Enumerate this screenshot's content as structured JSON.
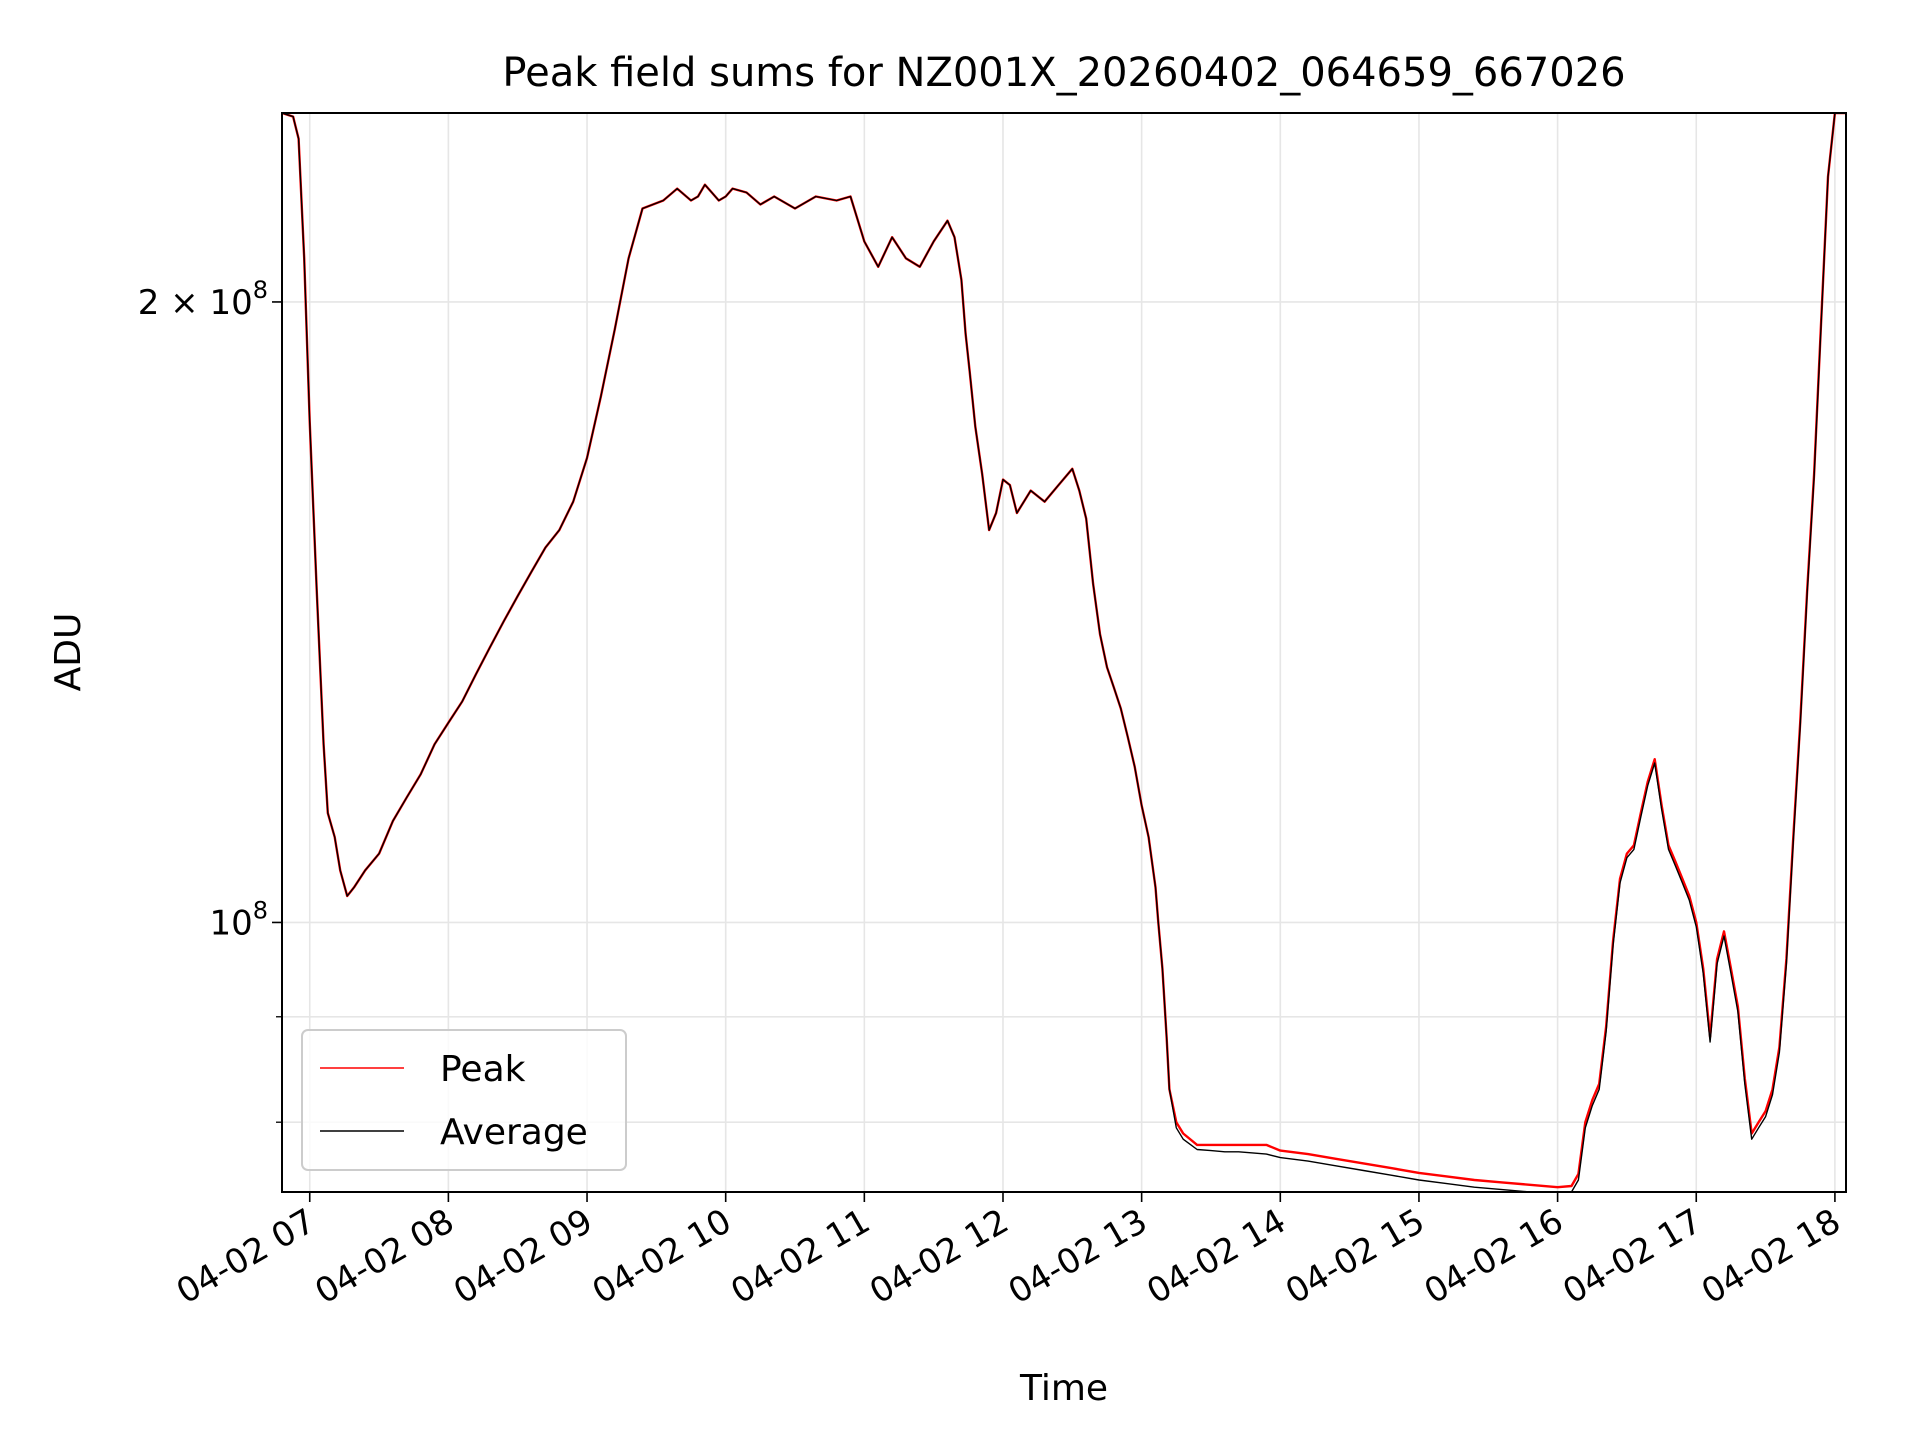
{
  "chart_data": {
    "type": "line",
    "title": "Peak field sums for NZ001X_20260402_064659_667026",
    "xlabel": "Time",
    "ylabel": "ADU",
    "yscale": "log",
    "xlim": [
      6.8,
      18.08
    ],
    "ylim": [
      74000000,
      247000000
    ],
    "x_ticks": [
      {
        "value": 7,
        "label": "04-02 07"
      },
      {
        "value": 8,
        "label": "04-02 08"
      },
      {
        "value": 9,
        "label": "04-02 09"
      },
      {
        "value": 10,
        "label": "04-02 10"
      },
      {
        "value": 11,
        "label": "04-02 11"
      },
      {
        "value": 12,
        "label": "04-02 12"
      },
      {
        "value": 13,
        "label": "04-02 13"
      },
      {
        "value": 14,
        "label": "04-02 14"
      },
      {
        "value": 15,
        "label": "04-02 15"
      },
      {
        "value": 16,
        "label": "04-02 16"
      },
      {
        "value": 17,
        "label": "04-02 17"
      },
      {
        "value": 18,
        "label": "04-02 18"
      }
    ],
    "y_major_ticks": [
      {
        "value": 100000000,
        "base": "10",
        "exp": "8"
      },
      {
        "value": 200000000,
        "base": "2 × 10",
        "exp": "8"
      }
    ],
    "y_minor_ticks": [
      80000000,
      90000000
    ],
    "grid": true,
    "legend": {
      "position": "lower-left",
      "entries": [
        "Peak",
        "Average"
      ]
    },
    "series": [
      {
        "name": "Peak",
        "color": "#ff0000",
        "x": [
          6.8,
          6.88,
          6.92,
          6.96,
          7.0,
          7.05,
          7.1,
          7.13,
          7.18,
          7.22,
          7.27,
          7.32,
          7.4,
          7.5,
          7.6,
          7.7,
          7.8,
          7.9,
          8.0,
          8.1,
          8.2,
          8.3,
          8.4,
          8.5,
          8.6,
          8.7,
          8.8,
          8.9,
          9.0,
          9.1,
          9.2,
          9.3,
          9.4,
          9.55,
          9.65,
          9.75,
          9.8,
          9.85,
          9.9,
          9.95,
          10.0,
          10.05,
          10.15,
          10.25,
          10.35,
          10.5,
          10.65,
          10.8,
          10.9,
          11.0,
          11.1,
          11.2,
          11.3,
          11.4,
          11.5,
          11.6,
          11.65,
          11.7,
          11.73,
          11.76,
          11.8,
          11.85,
          11.9,
          11.95,
          12.0,
          12.05,
          12.1,
          12.2,
          12.3,
          12.4,
          12.5,
          12.55,
          12.6,
          12.65,
          12.7,
          12.75,
          12.8,
          12.85,
          12.9,
          12.95,
          13.0,
          13.05,
          13.1,
          13.12,
          13.15,
          13.18,
          13.2,
          13.25,
          13.3,
          13.4,
          13.5,
          13.6,
          13.7,
          13.8,
          13.9,
          14.0,
          14.2,
          14.4,
          14.6,
          14.8,
          15.0,
          15.2,
          15.4,
          15.6,
          15.8,
          16.0,
          16.1,
          16.15,
          16.2,
          16.25,
          16.3,
          16.35,
          16.4,
          16.45,
          16.5,
          16.55,
          16.6,
          16.65,
          16.7,
          16.75,
          16.8,
          16.85,
          16.9,
          16.95,
          17.0,
          17.05,
          17.1,
          17.15,
          17.2,
          17.25,
          17.3,
          17.35,
          17.4,
          17.45,
          17.5,
          17.55,
          17.6,
          17.65,
          17.7,
          17.75,
          17.8,
          17.85,
          17.9,
          17.95,
          18.0,
          18.08
        ],
        "values": [
          247000000,
          246000000,
          240000000,
          210000000,
          175000000,
          145000000,
          122000000,
          113000000,
          110000000,
          106000000,
          103000000,
          104000000,
          106000000,
          108000000,
          112000000,
          115000000,
          118000000,
          122000000,
          125000000,
          128000000,
          132000000,
          136000000,
          140000000,
          144000000,
          148000000,
          152000000,
          155000000,
          160000000,
          168000000,
          180000000,
          194000000,
          210000000,
          222000000,
          224000000,
          227000000,
          224000000,
          225000000,
          228000000,
          226000000,
          224000000,
          225000000,
          227000000,
          226000000,
          223000000,
          225000000,
          222000000,
          225000000,
          224000000,
          225000000,
          214000000,
          208000000,
          215000000,
          210000000,
          208000000,
          214000000,
          219000000,
          215000000,
          205000000,
          193000000,
          185000000,
          174000000,
          165000000,
          155000000,
          158000000,
          164000000,
          163000000,
          158000000,
          162000000,
          160000000,
          163000000,
          166000000,
          162000000,
          157000000,
          146000000,
          138000000,
          133000000,
          130000000,
          127000000,
          123000000,
          119000000,
          114000000,
          110000000,
          104000000,
          100000000,
          95000000,
          88000000,
          83000000,
          80000000,
          79000000,
          78000000,
          78000000,
          78000000,
          78000000,
          78000000,
          78000000,
          77500000,
          77200000,
          76800000,
          76400000,
          76000000,
          75600000,
          75300000,
          75000000,
          74800000,
          74600000,
          74400000,
          74500000,
          75500000,
          80000000,
          82000000,
          83500000,
          89000000,
          98000000,
          105000000,
          108000000,
          109000000,
          113000000,
          117000000,
          120000000,
          114000000,
          109000000,
          107000000,
          105000000,
          103000000,
          100000000,
          95000000,
          88000000,
          96000000,
          99000000,
          95000000,
          91000000,
          84000000,
          79000000,
          80000000,
          81000000,
          83000000,
          87000000,
          96000000,
          110000000,
          125000000,
          145000000,
          165000000,
          195000000,
          230000000,
          247000000,
          247000000
        ]
      },
      {
        "name": "Average",
        "color": "#000000",
        "x": [
          6.8,
          6.88,
          6.92,
          6.96,
          7.0,
          7.05,
          7.1,
          7.13,
          7.18,
          7.22,
          7.27,
          7.32,
          7.4,
          7.5,
          7.6,
          7.7,
          7.8,
          7.9,
          8.0,
          8.1,
          8.2,
          8.3,
          8.4,
          8.5,
          8.6,
          8.7,
          8.8,
          8.9,
          9.0,
          9.1,
          9.2,
          9.3,
          9.4,
          9.55,
          9.65,
          9.75,
          9.8,
          9.85,
          9.9,
          9.95,
          10.0,
          10.05,
          10.15,
          10.25,
          10.35,
          10.5,
          10.65,
          10.8,
          10.9,
          11.0,
          11.1,
          11.2,
          11.3,
          11.4,
          11.5,
          11.6,
          11.65,
          11.7,
          11.73,
          11.76,
          11.8,
          11.85,
          11.9,
          11.95,
          12.0,
          12.05,
          12.1,
          12.2,
          12.3,
          12.4,
          12.5,
          12.55,
          12.6,
          12.65,
          12.7,
          12.75,
          12.8,
          12.85,
          12.9,
          12.95,
          13.0,
          13.05,
          13.1,
          13.12,
          13.15,
          13.18,
          13.2,
          13.25,
          13.3,
          13.4,
          13.5,
          13.6,
          13.7,
          13.8,
          13.9,
          14.0,
          14.2,
          14.4,
          14.6,
          14.8,
          15.0,
          15.2,
          15.4,
          15.6,
          15.8,
          16.0,
          16.1,
          16.15,
          16.2,
          16.25,
          16.3,
          16.35,
          16.4,
          16.45,
          16.5,
          16.55,
          16.6,
          16.65,
          16.7,
          16.75,
          16.8,
          16.85,
          16.9,
          16.95,
          17.0,
          17.05,
          17.1,
          17.15,
          17.2,
          17.25,
          17.3,
          17.35,
          17.4,
          17.45,
          17.5,
          17.55,
          17.6,
          17.65,
          17.7,
          17.75,
          17.8,
          17.85,
          17.9,
          17.95,
          18.0,
          18.08
        ],
        "values": [
          247000000,
          246000000,
          240000000,
          210000000,
          175000000,
          145000000,
          122000000,
          113000000,
          110000000,
          106000000,
          103000000,
          104000000,
          106000000,
          108000000,
          112000000,
          115000000,
          118000000,
          122000000,
          125000000,
          128000000,
          132000000,
          136000000,
          140000000,
          144000000,
          148000000,
          152000000,
          155000000,
          160000000,
          168000000,
          180000000,
          194000000,
          210000000,
          222000000,
          224000000,
          227000000,
          224000000,
          225000000,
          228000000,
          226000000,
          224000000,
          225000000,
          227000000,
          226000000,
          223000000,
          225000000,
          222000000,
          225000000,
          224000000,
          225000000,
          214000000,
          208000000,
          215000000,
          210000000,
          208000000,
          214000000,
          219000000,
          215000000,
          205000000,
          193000000,
          185000000,
          174000000,
          165000000,
          155000000,
          158000000,
          164000000,
          163000000,
          158000000,
          162000000,
          160000000,
          163000000,
          166000000,
          162000000,
          157000000,
          146000000,
          138000000,
          133000000,
          130000000,
          127000000,
          123000000,
          119000000,
          114000000,
          110000000,
          104000000,
          100000000,
          95000000,
          88000000,
          83000000,
          79500000,
          78500000,
          77600000,
          77500000,
          77400000,
          77400000,
          77300000,
          77200000,
          76900000,
          76600000,
          76200000,
          75800000,
          75400000,
          75000000,
          74700000,
          74400000,
          74200000,
          74000000,
          73900000,
          74000000,
          75000000,
          79500000,
          81500000,
          83000000,
          88500000,
          97500000,
          104500000,
          107500000,
          108500000,
          112500000,
          116500000,
          119500000,
          113500000,
          108500000,
          106500000,
          104500000,
          102500000,
          99500000,
          94500000,
          87500000,
          95500000,
          98500000,
          94500000,
          90500000,
          83500000,
          78500000,
          79500000,
          80500000,
          82500000,
          86500000,
          95500000,
          109500000,
          124500000,
          144500000,
          164500000,
          194500000,
          230000000,
          247000000,
          247000000
        ]
      }
    ]
  }
}
